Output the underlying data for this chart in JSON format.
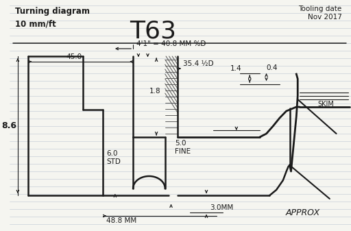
{
  "title": "T63",
  "subtitle_left": "Turning diagram",
  "subtitle_left2": "10 mm/ft",
  "tooling_date": "Tooling date\nNov 2017",
  "approx_text": "APPROX",
  "skim_text": "SKIM",
  "dim_top": "4'1\" = 40.8 MM %D",
  "dim_45": "45.0",
  "dim_354": "35.4 ½D",
  "dim_86": "8.6",
  "dim_18": "1.8",
  "dim_14": "1.4",
  "dim_04": "0.4",
  "dim_50": "5.0\nFINE",
  "dim_60": "6.0\nSTD",
  "dim_30": "3.0MM",
  "dim_488": "48.8 MM",
  "bg_color": "#f5f5f0",
  "line_color": "#1a1a1a",
  "ruled_color": "#c8cfd8"
}
